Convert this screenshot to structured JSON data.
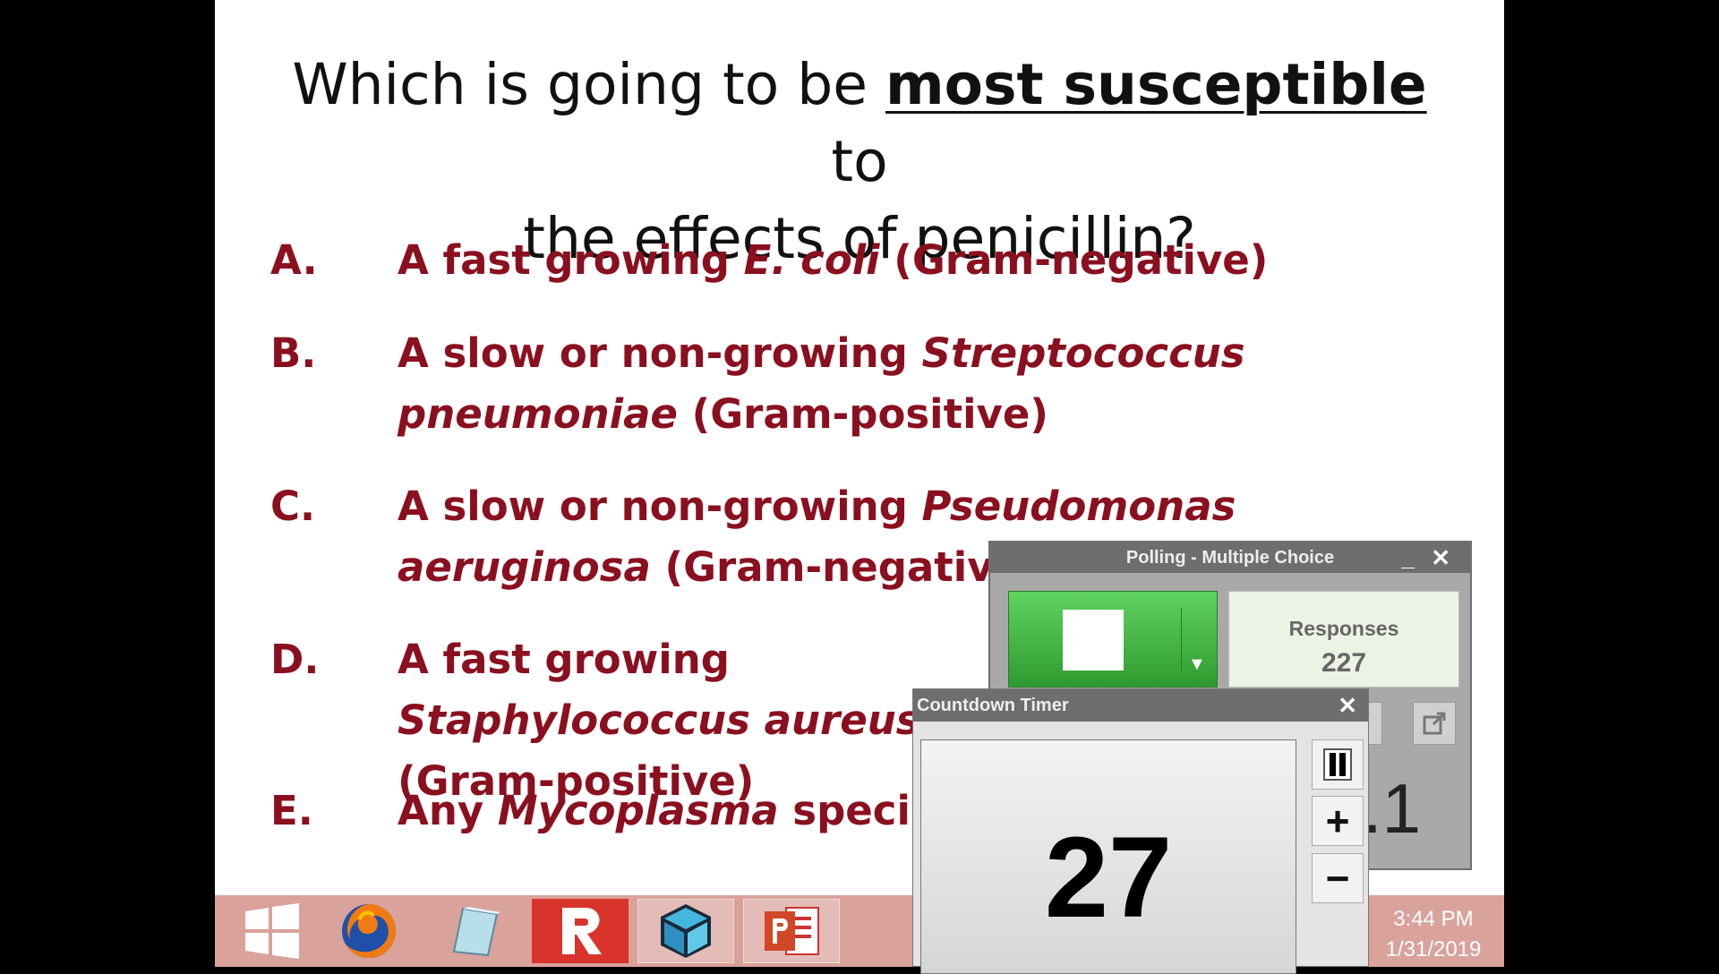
{
  "slide": {
    "question": {
      "before": "Which is going to be ",
      "emphasis": "most susceptible",
      "after_line1": " to",
      "line2": "the effects of penicillin?"
    },
    "options": [
      {
        "letter": "A.",
        "pre": "A fast growing ",
        "italic": "E. coli",
        "post": " (Gram-negative)"
      },
      {
        "letter": "B.",
        "pre": "A slow or non-growing ",
        "italic": "Streptococcus pneumoniae",
        "post": " (Gram-positive)"
      },
      {
        "letter": "C.",
        "pre": "A slow or non-growing ",
        "italic": "Pseudomonas aeruginosa",
        "post": " (Gram-negative)"
      },
      {
        "letter": "D.",
        "pre": "A fast growing ",
        "italic": "Staphylococcus aureus",
        "post": " (Gram-positive)"
      },
      {
        "letter": "E.",
        "pre": "Any ",
        "italic": "Mycoplasma",
        "post": " species"
      }
    ]
  },
  "polling": {
    "title": "Polling - Multiple Choice",
    "minimize": "_",
    "close": "✕",
    "responses_label": "Responses",
    "responses_count": "227",
    "partial_digit": ".1",
    "tools": [
      "flag-icon",
      "popout-icon"
    ]
  },
  "timer": {
    "title": "Countdown Timer",
    "close": "✕",
    "count": "27",
    "pause_icon": "pause-icon",
    "plus": "+",
    "minus": "−"
  },
  "taskbar": {
    "apps": [
      "windows-start-icon",
      "firefox-icon",
      "notebook-icon",
      "r-app-icon",
      "cube-app-icon",
      "powerpoint-icon"
    ],
    "time": "3:44 PM",
    "date": "1/31/2019"
  }
}
